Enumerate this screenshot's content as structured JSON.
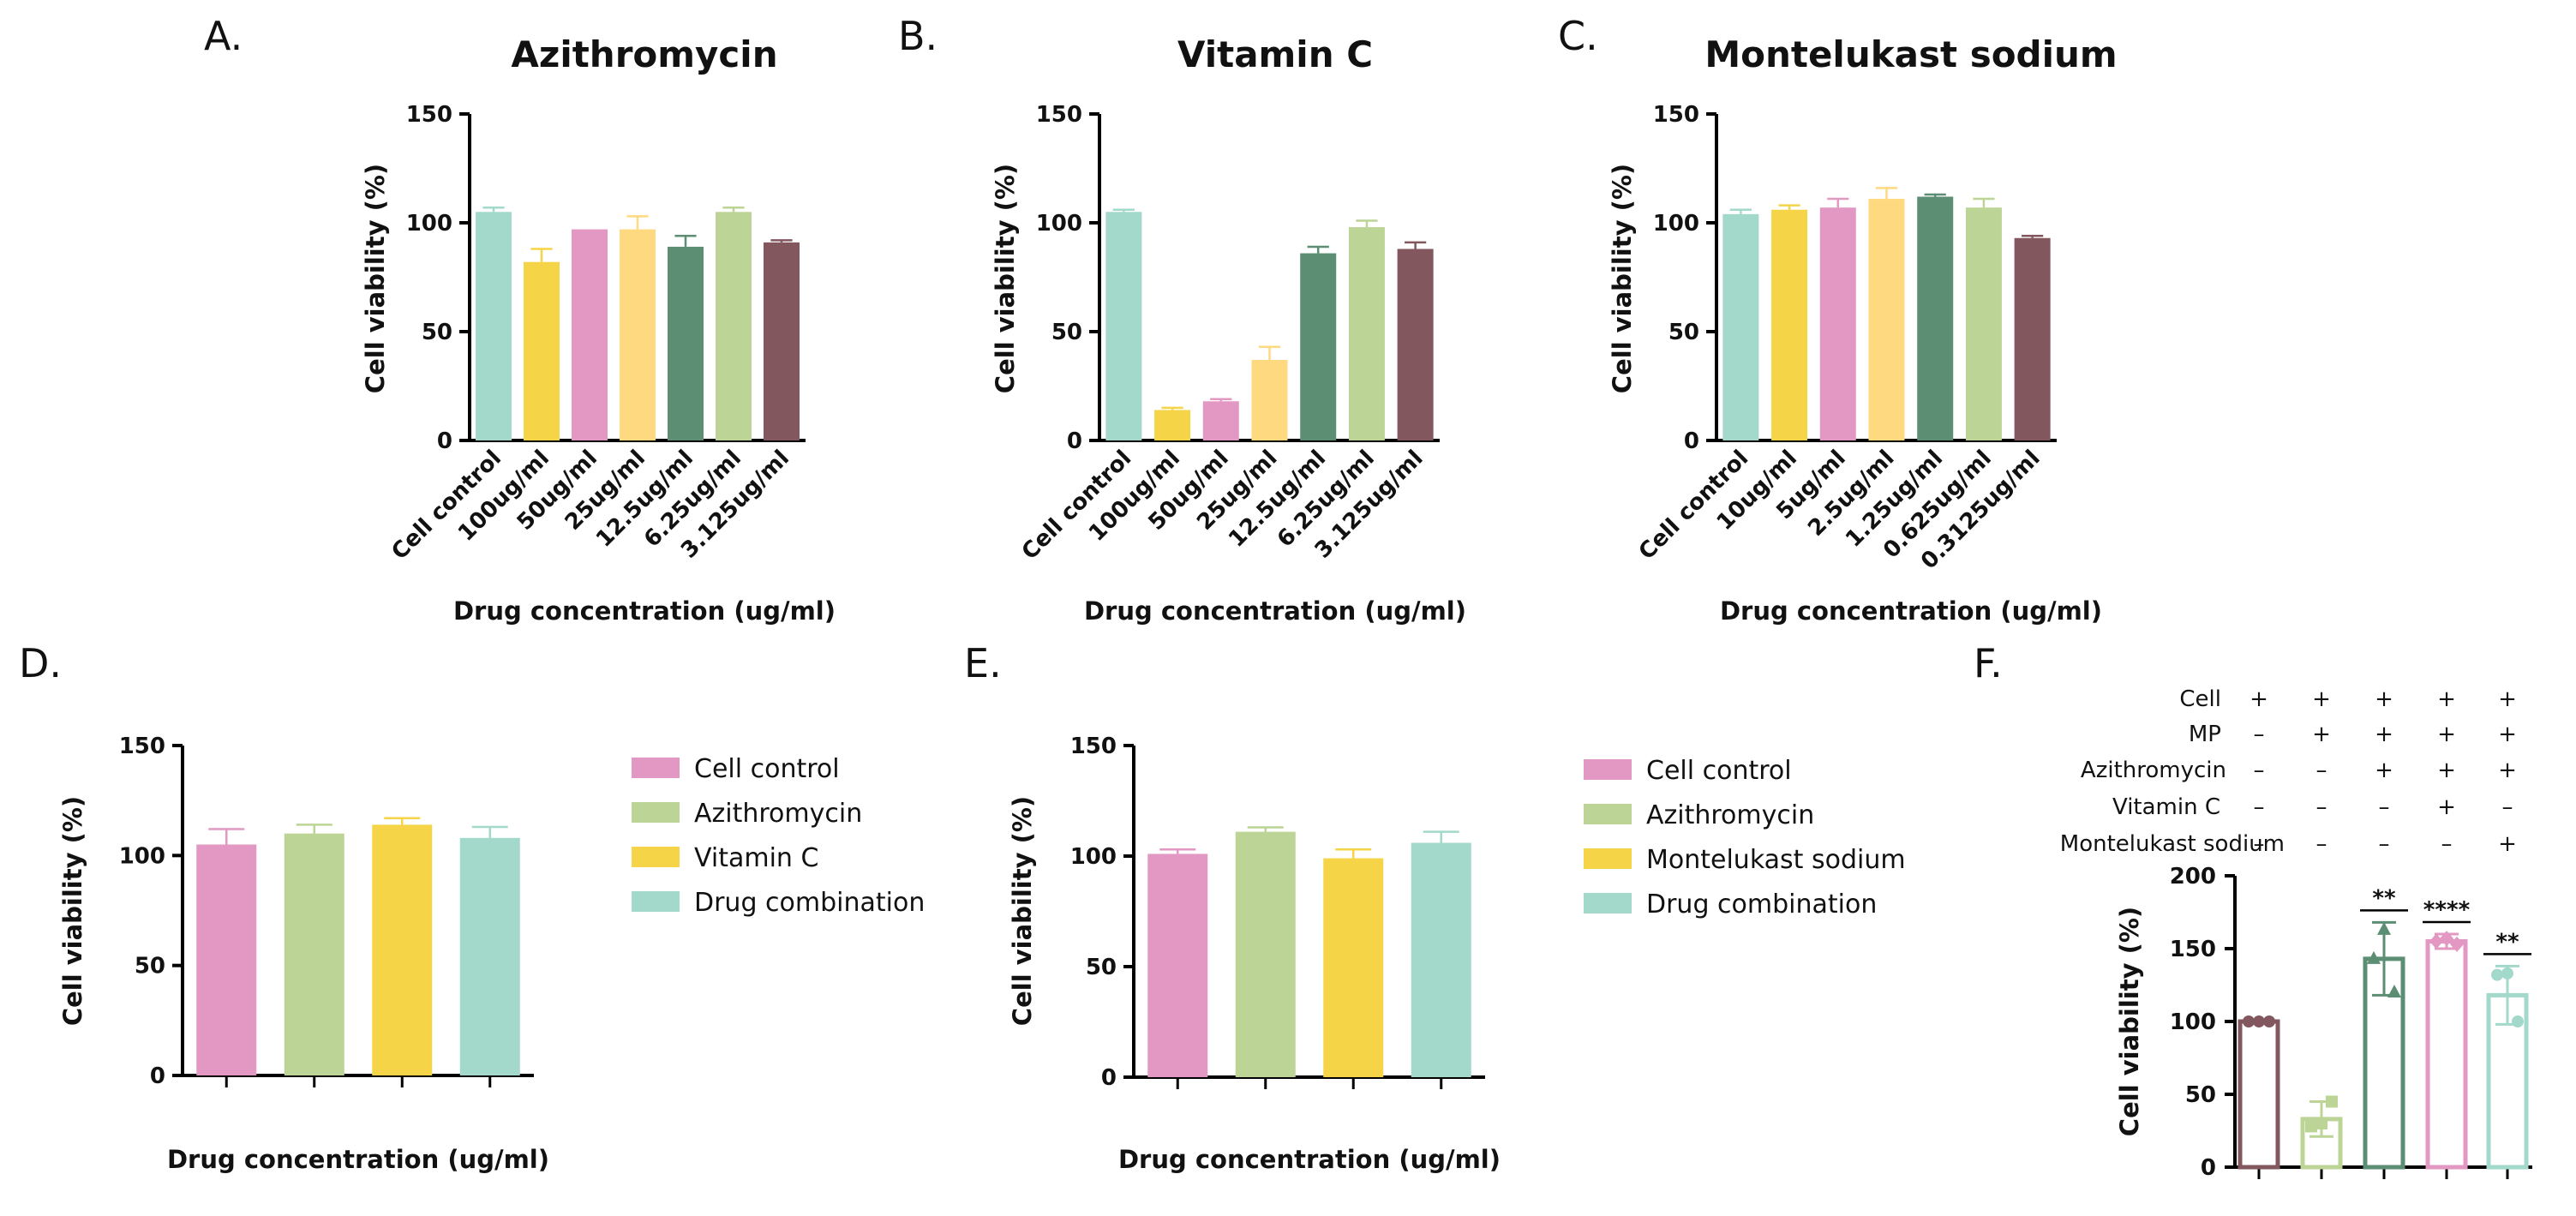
{
  "chart_data": [
    {
      "panel": "A.",
      "type": "bar",
      "title": "Azithromycin",
      "xlabel": "Drug concentration (ug/ml)",
      "ylabel": "Cell viability (%)",
      "ylim": [
        0,
        150
      ],
      "yticks": [
        "0",
        "50",
        "100",
        "150"
      ],
      "categories": [
        "Cell control",
        "100ug/ml",
        "50ug/ml",
        "25ug/ml",
        "12.5ug/ml",
        "6.25ug/ml",
        "3.125ug/ml"
      ],
      "values": [
        105,
        82,
        97,
        97,
        89,
        105,
        91
      ],
      "errors": [
        2,
        6,
        0,
        6,
        5,
        2,
        1
      ],
      "colors": [
        "#a3d9ca",
        "#f5d547",
        "#e398c3",
        "#ffd97f",
        "#5b8e73",
        "#bcd496",
        "#82575e"
      ]
    },
    {
      "panel": "B.",
      "type": "bar",
      "title": "Vitamin C",
      "xlabel": "Drug concentration (ug/ml)",
      "ylabel": "Cell viability (%)",
      "ylim": [
        0,
        150
      ],
      "yticks": [
        "0",
        "50",
        "100",
        "150"
      ],
      "categories": [
        "Cell control",
        "100ug/ml",
        "50ug/ml",
        "25ug/ml",
        "12.5ug/ml",
        "6.25ug/ml",
        "3.125ug/ml"
      ],
      "values": [
        105,
        14,
        18,
        37,
        86,
        98,
        88
      ],
      "errors": [
        1,
        1,
        1,
        6,
        3,
        3,
        3
      ],
      "colors": [
        "#a3d9ca",
        "#f5d547",
        "#e398c3",
        "#ffd97f",
        "#5b8e73",
        "#bcd496",
        "#82575e"
      ]
    },
    {
      "panel": "C.",
      "type": "bar",
      "title": "Montelukast sodium",
      "xlabel": "Drug concentration (ug/ml)",
      "ylabel": "Cell viability (%)",
      "ylim": [
        0,
        150
      ],
      "yticks": [
        "0",
        "50",
        "100",
        "150"
      ],
      "categories": [
        "Cell control",
        "10ug/ml",
        "5ug/ml",
        "2.5ug/ml",
        "1.25ug/ml",
        "0.625ug/ml",
        "0.3125ug/ml"
      ],
      "values": [
        104,
        106,
        107,
        111,
        112,
        107,
        93
      ],
      "errors": [
        2,
        2,
        4,
        5,
        1,
        4,
        1
      ],
      "colors": [
        "#a3d9ca",
        "#f5d547",
        "#e398c3",
        "#ffd97f",
        "#5b8e73",
        "#bcd496",
        "#82575e"
      ]
    },
    {
      "panel": "D.",
      "type": "bar",
      "xlabel": "Drug concentration (ug/ml)",
      "ylabel": "Cell viability (%)",
      "ylim": [
        0,
        150
      ],
      "yticks": [
        "0",
        "50",
        "100",
        "150"
      ],
      "categories": [
        "Cell control",
        "Azithromycin",
        "Vitamin C",
        "Drug combination"
      ],
      "values": [
        105,
        110,
        114,
        108
      ],
      "errors": [
        7,
        4,
        3,
        5
      ],
      "colors": [
        "#e398c3",
        "#bcd496",
        "#f5d547",
        "#a3d9ca"
      ],
      "legend": [
        "Cell control",
        "Azithromycin",
        "Vitamin C",
        "Drug combination"
      ]
    },
    {
      "panel": "E.",
      "type": "bar",
      "xlabel": "Drug concentration (ug/ml)",
      "ylabel": "Cell viability (%)",
      "ylim": [
        0,
        150
      ],
      "yticks": [
        "0",
        "50",
        "100",
        "150"
      ],
      "categories": [
        "Cell control",
        "Azithromycin",
        "Montelukast sodium",
        "Drug combination"
      ],
      "values": [
        101,
        111,
        99,
        106
      ],
      "errors": [
        2,
        2,
        4,
        5
      ],
      "colors": [
        "#e398c3",
        "#bcd496",
        "#f5d547",
        "#a3d9ca"
      ],
      "legend": [
        "Cell control",
        "Azithromycin",
        "Montelukast sodium",
        "Drug combination"
      ]
    },
    {
      "panel": "F.",
      "type": "bar",
      "ylabel": "Cell viability (%)",
      "ylim": [
        0,
        200
      ],
      "yticks": [
        "0",
        "50",
        "100",
        "150",
        "200"
      ],
      "conditions": [
        {
          "label": "Cell",
          "marks": [
            "+",
            "+",
            "+",
            "+",
            "+"
          ]
        },
        {
          "label": "MP",
          "marks": [
            "–",
            "+",
            "+",
            "+",
            "+"
          ]
        },
        {
          "label": "Azithromycin",
          "marks": [
            "–",
            "–",
            "+",
            "+",
            "+"
          ]
        },
        {
          "label": "Vitamin C",
          "marks": [
            "–",
            "–",
            "–",
            "+",
            "–"
          ]
        },
        {
          "label": "Montelukast sodium",
          "marks": [
            "–",
            "–",
            "–",
            "–",
            "+"
          ]
        }
      ],
      "values": [
        100,
        33,
        143,
        155,
        118
      ],
      "errors": [
        0,
        12,
        25,
        5,
        20
      ],
      "points": [
        [
          100,
          100,
          100
        ],
        [
          28,
          30,
          45
        ],
        [
          143,
          163,
          120
        ],
        [
          155,
          157,
          153
        ],
        [
          132,
          133,
          100
        ]
      ],
      "markers": [
        "circle",
        "square",
        "triangle",
        "diamond",
        "circle"
      ],
      "colors": [
        "#82575e",
        "#bcd496",
        "#5b8e73",
        "#e398c3",
        "#a3d9ca"
      ],
      "significance": [
        "",
        "",
        "**",
        "****",
        "**"
      ]
    }
  ]
}
